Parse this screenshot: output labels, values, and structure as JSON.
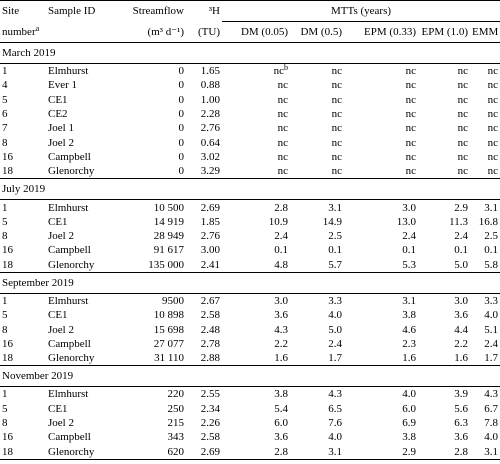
{
  "header": {
    "row1": [
      "Site",
      "Sample ID",
      "Streamflow",
      "³H",
      "MTTs (years)"
    ],
    "row2": [
      {
        "text": "number",
        "sup": "a"
      },
      "(m³ d⁻¹)",
      "(TU)",
      "DM (0.05)",
      "DM (0.5)",
      "EPM (0.33)",
      "EPM (1.0)",
      "EMM"
    ]
  },
  "sections": [
    {
      "title": "March 2019",
      "rows": [
        [
          "1",
          "Elmhurst",
          "0",
          "1.65",
          {
            "text": "nc",
            "sup": "b"
          },
          "nc",
          "nc",
          "nc",
          "nc"
        ],
        [
          "4",
          "Ever 1",
          "0",
          "0.88",
          "nc",
          "nc",
          "nc",
          "nc",
          "nc"
        ],
        [
          "5",
          "CE1",
          "0",
          "1.00",
          "nc",
          "nc",
          "nc",
          "nc",
          "nc"
        ],
        [
          "6",
          "CE2",
          "0",
          "2.28",
          "nc",
          "nc",
          "nc",
          "nc",
          "nc"
        ],
        [
          "7",
          "Joel 1",
          "0",
          "2.76",
          "nc",
          "nc",
          "nc",
          "nc",
          "nc"
        ],
        [
          "8",
          "Joel 2",
          "0",
          "0.64",
          "nc",
          "nc",
          "nc",
          "nc",
          "nc"
        ],
        [
          "16",
          "Campbell",
          "0",
          "3.02",
          "nc",
          "nc",
          "nc",
          "nc",
          "nc"
        ],
        [
          "18",
          "Glenorchy",
          "0",
          "3.29",
          "nc",
          "nc",
          "nc",
          "nc",
          "nc"
        ]
      ]
    },
    {
      "title": "July 2019",
      "rows": [
        [
          "1",
          "Elmhurst",
          "10 500",
          "2.69",
          "2.8",
          "3.1",
          "3.0",
          "2.9",
          "3.1"
        ],
        [
          "5",
          "CE1",
          "14 919",
          "1.85",
          "10.9",
          "14.9",
          "13.0",
          "11.3",
          "16.8"
        ],
        [
          "8",
          "Joel 2",
          "28 949",
          "2.76",
          "2.4",
          "2.5",
          "2.4",
          "2.4",
          "2.5"
        ],
        [
          "16",
          "Campbell",
          "91 617",
          "3.00",
          "0.1",
          "0.1",
          "0.1",
          "0.1",
          "0.1"
        ],
        [
          "18",
          "Glenorchy",
          "135 000",
          "2.41",
          "4.8",
          "5.7",
          "5.3",
          "5.0",
          "5.8"
        ]
      ]
    },
    {
      "title": "September 2019",
      "rows": [
        [
          "1",
          "Elmhurst",
          "9500",
          "2.67",
          "3.0",
          "3.3",
          "3.1",
          "3.0",
          "3.3"
        ],
        [
          "5",
          "CE1",
          "10 898",
          "2.58",
          "3.6",
          "4.0",
          "3.8",
          "3.6",
          "4.0"
        ],
        [
          "8",
          "Joel 2",
          "15 698",
          "2.48",
          "4.3",
          "5.0",
          "4.6",
          "4.4",
          "5.1"
        ],
        [
          "16",
          "Campbell",
          "27 077",
          "2.78",
          "2.2",
          "2.4",
          "2.3",
          "2.2",
          "2.4"
        ],
        [
          "18",
          "Glenorchy",
          "31 110",
          "2.88",
          "1.6",
          "1.7",
          "1.6",
          "1.6",
          "1.7"
        ]
      ]
    },
    {
      "title": "November 2019",
      "rows": [
        [
          "1",
          "Elmhurst",
          "220",
          "2.55",
          "3.8",
          "4.3",
          "4.0",
          "3.9",
          "4.3"
        ],
        [
          "5",
          "CE1",
          "250",
          "2.34",
          "5.4",
          "6.5",
          "6.0",
          "5.6",
          "6.7"
        ],
        [
          "8",
          "Joel 2",
          "215",
          "2.26",
          "6.0",
          "7.6",
          "6.9",
          "6.3",
          "7.8"
        ],
        [
          "16",
          "Campbell",
          "343",
          "2.58",
          "3.6",
          "4.0",
          "3.8",
          "3.6",
          "4.0"
        ],
        [
          "18",
          "Glenorchy",
          "620",
          "2.69",
          "2.8",
          "3.1",
          "2.9",
          "2.8",
          "3.1"
        ]
      ]
    }
  ]
}
